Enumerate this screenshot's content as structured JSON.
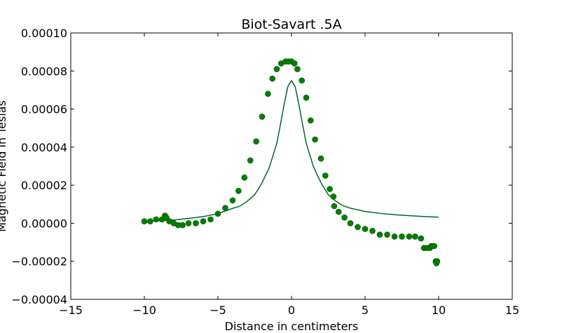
{
  "chart_data": {
    "type": "scatter",
    "title": "Biot-Savart .5A",
    "xlabel": "Distance in centimeters",
    "ylabel": "Magnetic Field in Teslas",
    "xlim": [
      -15,
      15
    ],
    "ylim": [
      -4e-05,
      0.0001
    ],
    "xticks": [
      -15,
      -10,
      -5,
      0,
      5,
      10,
      15
    ],
    "xtick_labels": [
      "−15",
      "−10",
      "−5",
      "0",
      "5",
      "10",
      "15"
    ],
    "yticks": [
      -4e-05,
      -2e-05,
      0,
      2e-05,
      4e-05,
      6e-05,
      8e-05,
      0.0001
    ],
    "ytick_labels": [
      "−0.00004",
      "−0.00002",
      "0.00000",
      "0.00002",
      "0.00004",
      "0.00006",
      "0.00008",
      "0.00010"
    ],
    "grid": false,
    "colors": {
      "measured": "#008000",
      "theory": "#006633"
    },
    "series": [
      {
        "kind": "scatter",
        "x": [
          -10.0,
          -9.6,
          -9.2,
          -8.8,
          -8.6,
          -8.5,
          -8.3,
          -8.0,
          -7.7,
          -7.4,
          -7.0,
          -6.5,
          -6.0,
          -5.5,
          -5.0,
          -4.5,
          -4.0,
          -3.6,
          -3.2,
          -2.8,
          -2.4,
          -2.0,
          -1.6,
          -1.3,
          -1.0,
          -0.7,
          -0.4,
          -0.2,
          0.0,
          0.2,
          0.4,
          0.7,
          1.0,
          1.3,
          1.6,
          2.0,
          2.3,
          2.6,
          2.85,
          2.9,
          3.2,
          3.6,
          4.0,
          4.5,
          5.0,
          5.5,
          6.0,
          6.5,
          7.0,
          7.5,
          8.0,
          8.4,
          8.8,
          9.0,
          9.2,
          9.4,
          9.5,
          9.6,
          9.7,
          9.8,
          9.85,
          9.9
        ],
        "y": [
          1e-06,
          1e-06,
          2e-06,
          2e-06,
          4e-06,
          3e-06,
          1e-06,
          0.0,
          -1e-06,
          -1e-06,
          0.0,
          0.0,
          1e-06,
          2e-06,
          5e-06,
          8e-06,
          1.2e-05,
          1.7e-05,
          2.4e-05,
          3.3e-05,
          4.3e-05,
          5.6e-05,
          6.8e-05,
          7.6e-05,
          8.1e-05,
          8.4e-05,
          8.5e-05,
          8.5e-05,
          8.5e-05,
          8.4e-05,
          8.1e-05,
          7.5e-05,
          6.6e-05,
          5.4e-05,
          4.4e-05,
          3.4e-05,
          2.5e-05,
          1.8e-05,
          1.4e-05,
          9e-06,
          6e-06,
          3e-06,
          0.0,
          -2e-06,
          -3e-06,
          -4e-06,
          -6e-06,
          -6e-06,
          -7e-06,
          -7e-06,
          -7e-06,
          -7e-06,
          -8e-06,
          -1.3e-05,
          -1.3e-05,
          -1.3e-05,
          -1.2e-05,
          -1.2e-05,
          -1.2e-05,
          -2e-05,
          -2.1e-05,
          -2e-05
        ]
      },
      {
        "kind": "line",
        "x": [
          -10.0,
          -9.0,
          -8.0,
          -7.0,
          -6.0,
          -5.0,
          -4.0,
          -3.5,
          -3.0,
          -2.5,
          -2.0,
          -1.5,
          -1.0,
          -0.75,
          -0.5,
          -0.25,
          0.0,
          0.25,
          0.5,
          0.75,
          1.0,
          1.5,
          2.0,
          2.5,
          3.0,
          3.5,
          4.0,
          5.0,
          6.0,
          7.0,
          8.0,
          9.0,
          10.0
        ],
        "y": [
          1e-06,
          1.3e-06,
          1.7e-06,
          2.5e-06,
          3.5e-06,
          5e-06,
          7.8e-06,
          9e-06,
          1.16e-05,
          1.5e-05,
          2.13e-05,
          2.95e-05,
          4.2e-05,
          5.2e-05,
          6.25e-05,
          7.18e-05,
          7.5e-05,
          7.18e-05,
          6.25e-05,
          5.2e-05,
          4.2e-05,
          2.95e-05,
          2.13e-05,
          1.5e-05,
          1.16e-05,
          9.2e-06,
          7.9e-06,
          6.2e-06,
          5.2e-06,
          4.5e-06,
          4e-06,
          3.5e-06,
          3.2e-06
        ]
      }
    ]
  }
}
